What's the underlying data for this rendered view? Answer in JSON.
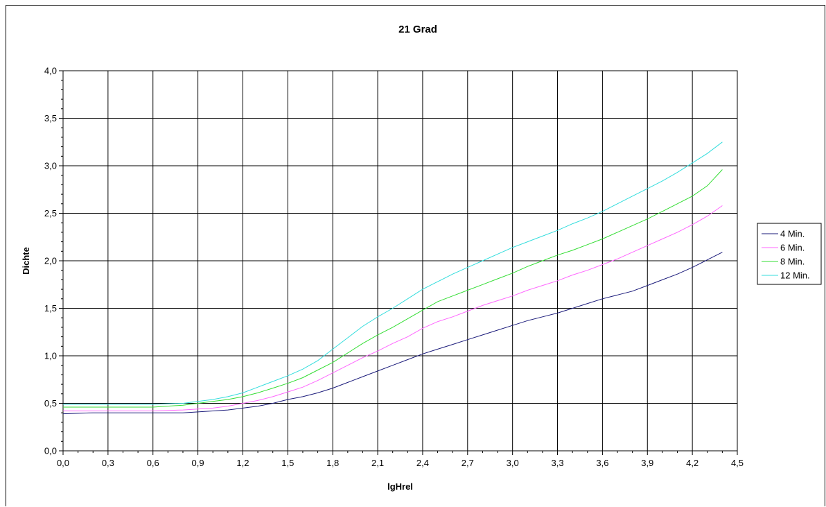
{
  "chart_data": {
    "type": "line",
    "title": "21 Grad",
    "xlabel": "lgHrel",
    "ylabel": "Dichte",
    "xlim": [
      0,
      4.5
    ],
    "ylim": [
      0,
      4
    ],
    "x_ticks": [
      "0,0",
      "0,3",
      "0,6",
      "0,9",
      "1,2",
      "1,5",
      "1,8",
      "2,1",
      "2,4",
      "2,7",
      "3,0",
      "3,3",
      "3,6",
      "3,9",
      "4,2",
      "4,5"
    ],
    "y_ticks": [
      "0,0",
      "0,5",
      "1,0",
      "1,5",
      "2,0",
      "2,5",
      "3,0",
      "3,5",
      "4,0"
    ],
    "x_tick_values": [
      0,
      0.3,
      0.6,
      0.9,
      1.2,
      1.5,
      1.8,
      2.1,
      2.4,
      2.7,
      3.0,
      3.3,
      3.6,
      3.9,
      4.2,
      4.5
    ],
    "y_tick_values": [
      0,
      0.5,
      1.0,
      1.5,
      2.0,
      2.5,
      3.0,
      3.5,
      4.0
    ],
    "grid": true,
    "legend_position": "right",
    "x": [
      0,
      0.2,
      0.4,
      0.6,
      0.8,
      1.0,
      1.1,
      1.2,
      1.3,
      1.4,
      1.5,
      1.6,
      1.7,
      1.8,
      1.9,
      2.0,
      2.1,
      2.2,
      2.3,
      2.4,
      2.5,
      2.6,
      2.7,
      2.8,
      2.9,
      3.0,
      3.1,
      3.2,
      3.3,
      3.4,
      3.5,
      3.6,
      3.7,
      3.8,
      3.9,
      4.0,
      4.1,
      4.2,
      4.3,
      4.4
    ],
    "series": [
      {
        "name": "4 Min.",
        "color": "#1a1a7a",
        "values": [
          0.39,
          0.4,
          0.4,
          0.4,
          0.4,
          0.42,
          0.43,
          0.45,
          0.47,
          0.5,
          0.54,
          0.57,
          0.61,
          0.66,
          0.72,
          0.78,
          0.84,
          0.9,
          0.96,
          1.02,
          1.07,
          1.12,
          1.17,
          1.22,
          1.27,
          1.32,
          1.37,
          1.41,
          1.45,
          1.5,
          1.55,
          1.6,
          1.64,
          1.68,
          1.74,
          1.8,
          1.86,
          1.93,
          2.01,
          2.09
        ]
      },
      {
        "name": "6 Min.",
        "color": "#ff66ff",
        "values": [
          0.42,
          0.42,
          0.42,
          0.42,
          0.43,
          0.45,
          0.47,
          0.5,
          0.53,
          0.57,
          0.62,
          0.67,
          0.74,
          0.82,
          0.9,
          0.98,
          1.05,
          1.13,
          1.2,
          1.29,
          1.36,
          1.41,
          1.47,
          1.53,
          1.58,
          1.63,
          1.69,
          1.74,
          1.79,
          1.85,
          1.9,
          1.96,
          2.02,
          2.09,
          2.16,
          2.23,
          2.3,
          2.38,
          2.47,
          2.58
        ]
      },
      {
        "name": "8 Min.",
        "color": "#33dd33",
        "values": [
          0.46,
          0.46,
          0.46,
          0.46,
          0.48,
          0.52,
          0.54,
          0.57,
          0.61,
          0.66,
          0.71,
          0.77,
          0.85,
          0.93,
          1.03,
          1.13,
          1.22,
          1.3,
          1.39,
          1.48,
          1.57,
          1.63,
          1.69,
          1.75,
          1.81,
          1.87,
          1.94,
          2.0,
          2.06,
          2.11,
          2.17,
          2.23,
          2.3,
          2.37,
          2.44,
          2.52,
          2.6,
          2.68,
          2.79,
          2.96
        ]
      },
      {
        "name": "12 Min.",
        "color": "#33dddd",
        "values": [
          0.49,
          0.49,
          0.49,
          0.49,
          0.5,
          0.54,
          0.57,
          0.61,
          0.67,
          0.73,
          0.79,
          0.86,
          0.95,
          1.07,
          1.19,
          1.31,
          1.41,
          1.5,
          1.6,
          1.7,
          1.78,
          1.86,
          1.93,
          2.0,
          2.07,
          2.14,
          2.2,
          2.26,
          2.32,
          2.39,
          2.45,
          2.52,
          2.6,
          2.68,
          2.76,
          2.84,
          2.93,
          3.03,
          3.13,
          3.25
        ]
      }
    ]
  }
}
